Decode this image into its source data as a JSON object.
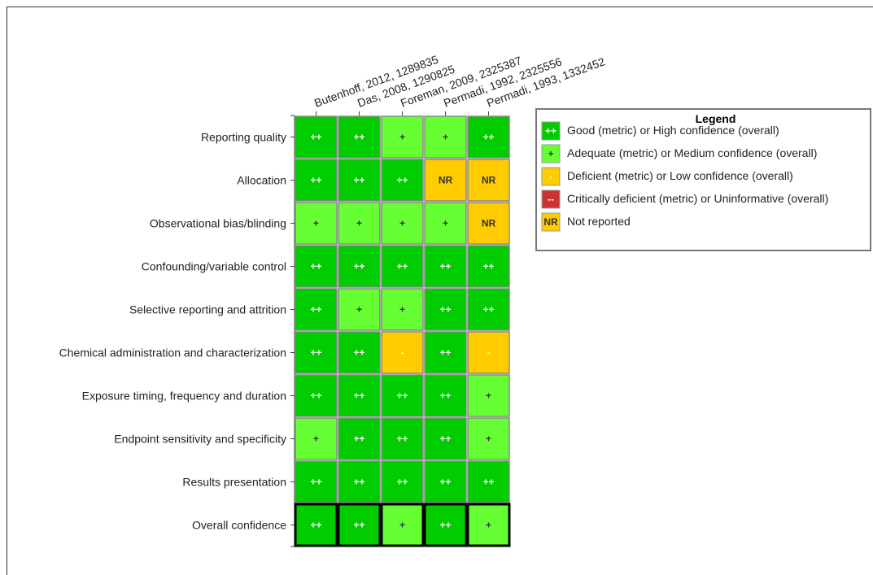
{
  "chart_data": {
    "type": "heatmap",
    "title": "",
    "columns": [
      "Butenhoff, 2012, 1289835",
      "Das, 2008, 1290825",
      "Foreman, 2009, 2325387",
      "Permadi, 1992, 2325556",
      "Permadi, 1993, 1332452"
    ],
    "rows": [
      "Reporting quality",
      "Allocation",
      "Observational bias/blinding",
      "Confounding/variable control",
      "Selective reporting and attrition",
      "Chemical administration and characterization",
      "Exposure timing, frequency and duration",
      "Endpoint sensitivity and specificity",
      "Results presentation",
      "Overall confidence"
    ],
    "values": [
      [
        "++",
        "++",
        "+",
        "+",
        "++"
      ],
      [
        "++",
        "++",
        "++",
        "NR",
        "NR"
      ],
      [
        "+",
        "+",
        "+",
        "+",
        "NR"
      ],
      [
        "++",
        "++",
        "++",
        "++",
        "++"
      ],
      [
        "++",
        "+",
        "+",
        "++",
        "++"
      ],
      [
        "++",
        "++",
        "-",
        "++",
        "-"
      ],
      [
        "++",
        "++",
        "++",
        "++",
        "+"
      ],
      [
        "+",
        "++",
        "++",
        "++",
        "+"
      ],
      [
        "++",
        "++",
        "++",
        "++",
        "++"
      ],
      [
        "++",
        "++",
        "+",
        "++",
        "+"
      ]
    ],
    "highlighted_row": "Overall confidence",
    "legend": {
      "title": "Legend",
      "placement": "right",
      "items": [
        {
          "symbol": "++",
          "label": "Good (metric) or High confidence (overall)",
          "color": "#00cc00",
          "text_color": "#ffffff"
        },
        {
          "symbol": "+",
          "label": "Adequate (metric) or Medium confidence (overall)",
          "color": "#66ff33",
          "text_color": "#333333"
        },
        {
          "symbol": "-",
          "label": "Deficient (metric) or Low confidence (overall)",
          "color": "#ffcc00",
          "text_color": "#ffffff"
        },
        {
          "symbol": "--",
          "label": "Critically deficient (metric) or Uninformative (overall)",
          "color": "#cc3333",
          "text_color": "#ffffff"
        },
        {
          "symbol": "NR",
          "label": "Not reported",
          "color": "#ffcc00",
          "text_color": "#333333"
        }
      ]
    }
  }
}
